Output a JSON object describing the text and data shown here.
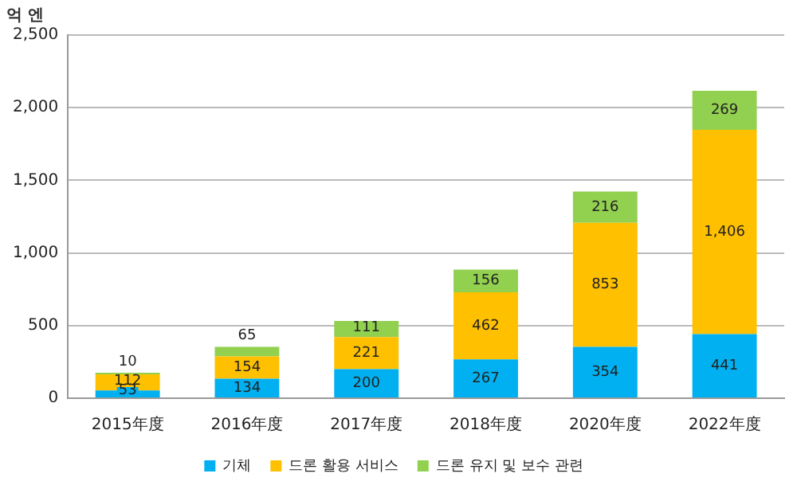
{
  "chart_data": {
    "type": "bar",
    "stacked": true,
    "ylabel": "억 엔",
    "categories": [
      "2015年度",
      "2016年度",
      "2017年度",
      "2018年度",
      "2020年度",
      "2022年度"
    ],
    "series": [
      {
        "name": "기체",
        "color": "#00b0f0",
        "values": [
          53,
          134,
          200,
          267,
          354,
          441
        ],
        "value_labels": [
          "53",
          "134",
          "200",
          "267",
          "354",
          "441"
        ]
      },
      {
        "name": "드론 활용 서비스",
        "color": "#ffc000",
        "values": [
          112,
          154,
          221,
          462,
          853,
          1406
        ],
        "value_labels": [
          "112",
          "154",
          "221",
          "462",
          "853",
          "1,406"
        ]
      },
      {
        "name": "드론 유지 및 보수 관련",
        "color": "#92d050",
        "values": [
          10,
          65,
          111,
          156,
          216,
          269
        ],
        "value_labels": [
          "10",
          "65",
          "111",
          "156",
          "216",
          "269"
        ]
      }
    ],
    "ylim": [
      0,
      2500
    ],
    "yticks": [
      0,
      {
        "value": 500,
        "label": "500"
      },
      {
        "value": 1000,
        "label": "1,000"
      },
      {
        "value": 1500,
        "label": "1,500"
      },
      {
        "value": 2000,
        "label": "2,000"
      },
      {
        "value": 2500,
        "label": "2,500"
      }
    ],
    "grid": "y",
    "legend": "bottom"
  }
}
